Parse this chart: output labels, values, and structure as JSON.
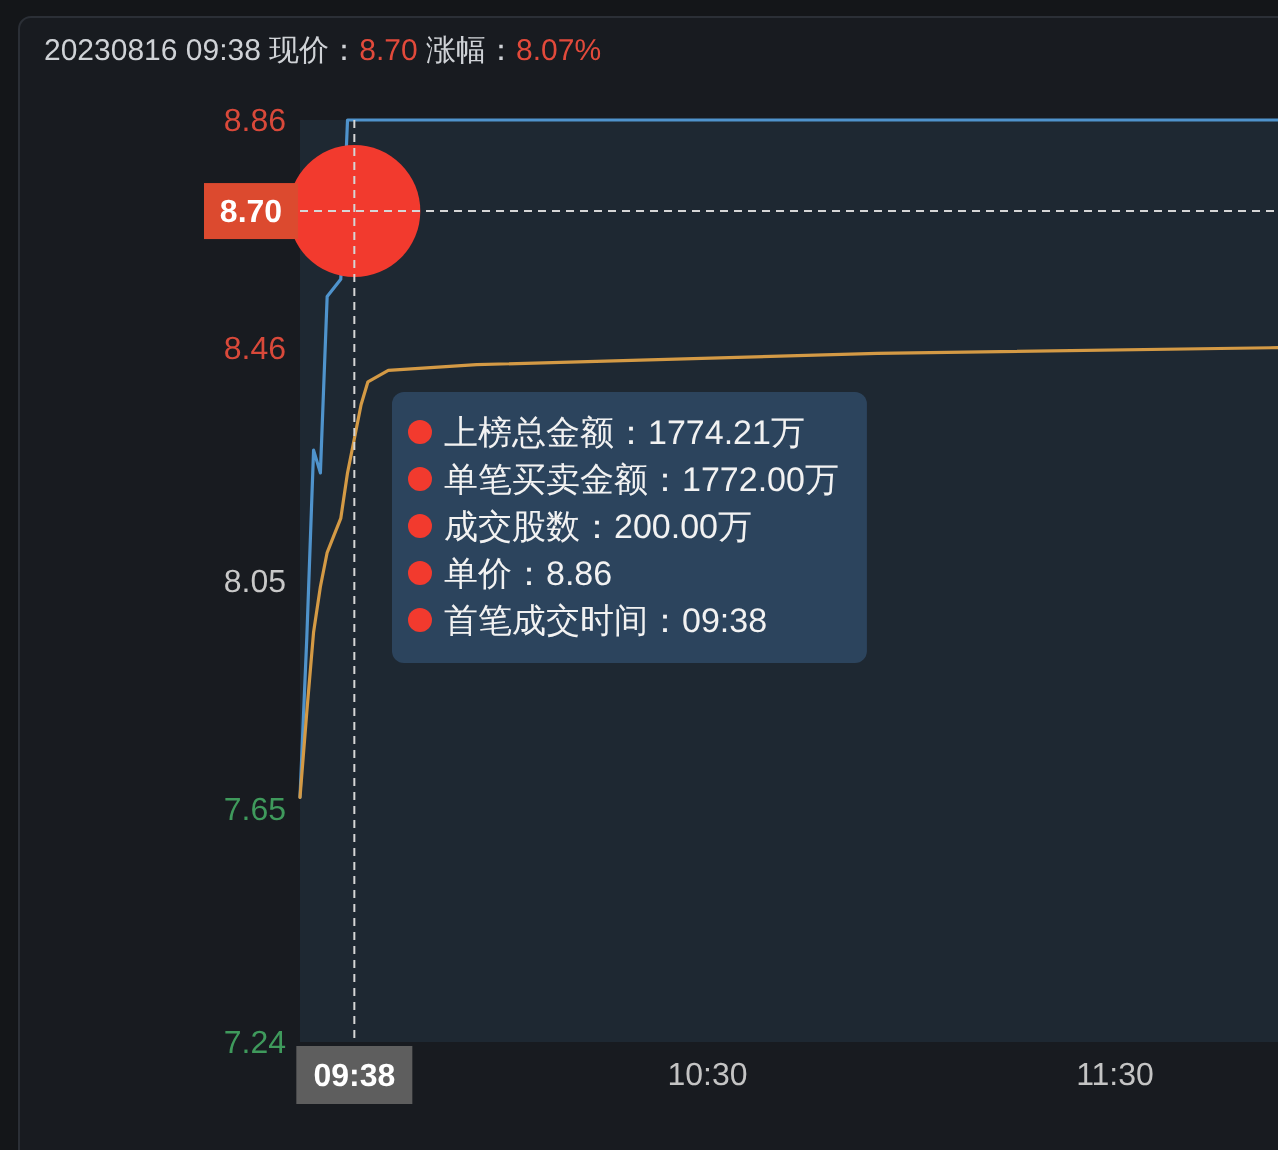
{
  "chart_data": {
    "type": "line",
    "title": "20230816 09:38 现价：8.70 涨幅：8.07%",
    "xlim": [
      "2023-08-16T09:30",
      "2023-08-16T11:54"
    ],
    "ylim": [
      7.24,
      8.86
    ],
    "xticks": [
      {
        "value": "2023-08-16T10:30",
        "label": "10:30"
      },
      {
        "value": "2023-08-16T11:30",
        "label": "11:30"
      }
    ],
    "yticks": [
      7.24,
      7.65,
      8.05,
      8.46,
      8.86
    ],
    "series": [
      {
        "color": "#4f93cc",
        "x": [
          "2023-08-16T09:30",
          "2023-08-16T09:31",
          "2023-08-16T09:32",
          "2023-08-16T09:33",
          "2023-08-16T09:34",
          "2023-08-16T09:36",
          "2023-08-16T09:37",
          "2023-08-16T09:39",
          "2023-08-16T11:54"
        ],
        "values": [
          7.67,
          7.95,
          8.28,
          8.24,
          8.55,
          8.58,
          8.86,
          8.86,
          8.86
        ]
      },
      {
        "color": "#d49a45",
        "x": [
          "2023-08-16T09:30",
          "2023-08-16T09:31",
          "2023-08-16T09:32",
          "2023-08-16T09:33",
          "2023-08-16T09:34",
          "2023-08-16T09:35",
          "2023-08-16T09:36",
          "2023-08-16T09:37",
          "2023-08-16T09:38",
          "2023-08-16T09:39",
          "2023-08-16T09:40",
          "2023-08-16T09:43",
          "2023-08-16T09:56",
          "2023-08-16T10:55",
          "2023-08-16T11:54"
        ],
        "values": [
          7.67,
          7.82,
          7.96,
          8.04,
          8.1,
          8.13,
          8.16,
          8.24,
          8.3,
          8.36,
          8.4,
          8.42,
          8.43,
          8.45,
          8.46
        ]
      },
      {
        "type": "scatter",
        "color": "#f23a2e",
        "marker": "circle",
        "x": [
          "2023-08-16T09:38"
        ],
        "values": [
          8.7
        ]
      }
    ],
    "ref_lines": [
      {
        "axis": "x",
        "value": "2023-08-16T09:38",
        "label": "09:38",
        "line_style": "dashed"
      },
      {
        "axis": "y",
        "value": 8.7,
        "label": "8.70",
        "line_style": "dashed"
      }
    ],
    "annotations": [
      "上榜总金额：1774.21万",
      "单笔买卖金额：1772.00万",
      "成交股数：200.00万",
      "单价：8.86",
      "首笔成交时间：09:38"
    ],
    "grid": false,
    "line_style": "solid"
  }
}
